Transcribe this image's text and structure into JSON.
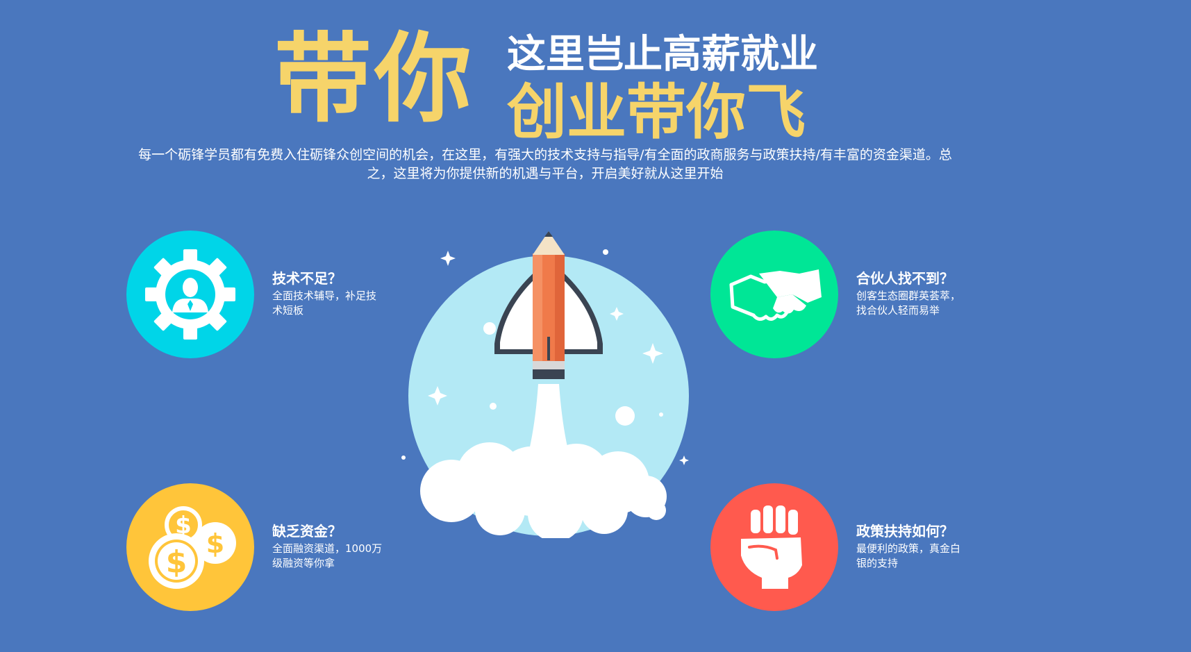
{
  "headline": {
    "big": "带你",
    "line1": "这里岂止高薪就业",
    "line2": "创业带你飞"
  },
  "description": "每一个砺锋学员都有免费入住砺锋众创空间的机会，在这里，有强大的技术支持与指导/有全面的政商服务与政策扶持/有丰富的资金渠道。总之，这里将为你提供新的机遇与平台，开启美好就从这里开始",
  "features": [
    {
      "title": "技术不足？",
      "desc": "全面技术辅导，补足技术短板",
      "icon": "gear-person-icon",
      "color": "#00d5e8"
    },
    {
      "title": "合伙人找不到？",
      "desc": "创客生态圈群英荟萃，找合伙人轻而易举",
      "icon": "handshake-icon",
      "color": "#00e696"
    },
    {
      "title": "缺乏资金？",
      "desc": "全面融资渠道，1000万级融资等你拿",
      "icon": "coins-icon",
      "color": "#ffc53a"
    },
    {
      "title": "政策扶持如何？",
      "desc": "最便利的政策，真金白银的支持",
      "icon": "fist-icon",
      "color": "#ff5a4e"
    }
  ],
  "colors": {
    "background": "#4a77be",
    "headline_yellow": "#f6d46a",
    "rocket_circle": "#b3e9f5"
  }
}
